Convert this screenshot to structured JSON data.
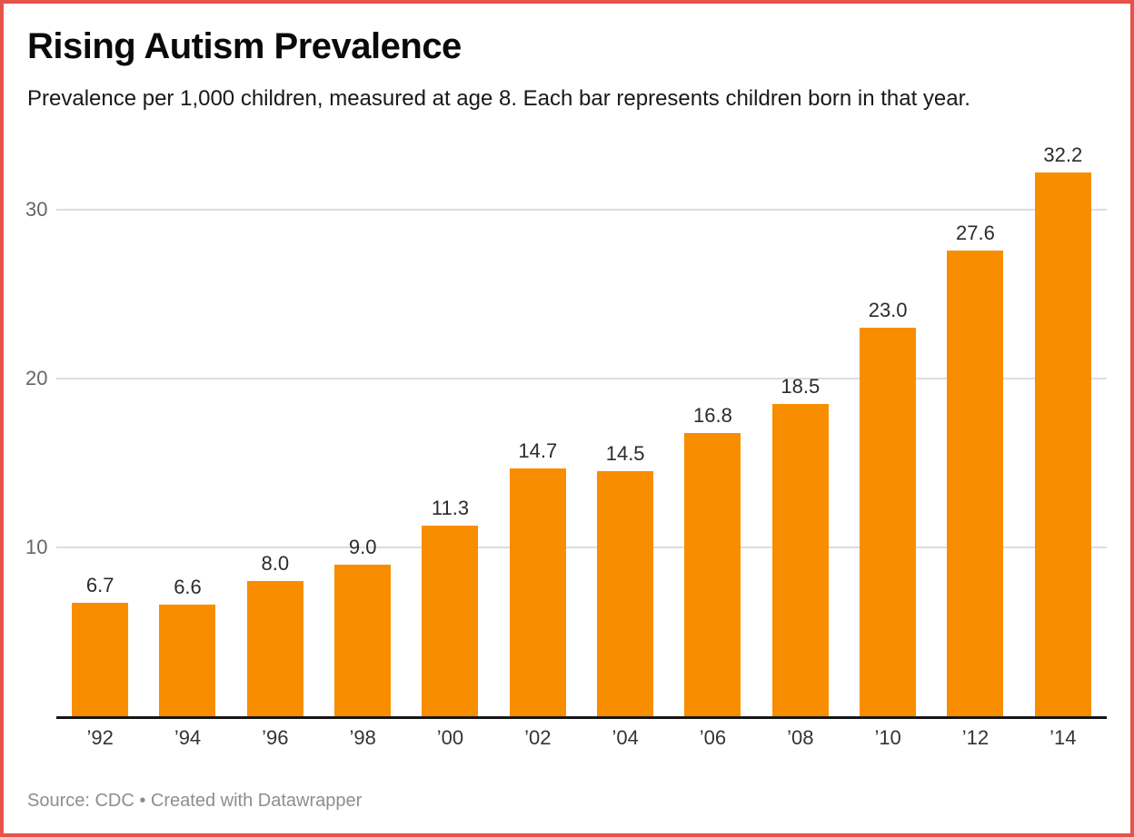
{
  "header": {
    "title": "Rising Autism Prevalence",
    "subtitle": "Prevalence per 1,000 children, measured at age 8. Each bar represents children born in that year."
  },
  "chart_data": {
    "type": "bar",
    "title": "Rising Autism Prevalence",
    "subtitle": "Prevalence per 1,000 children, measured at age 8. Each bar represents children born in that year.",
    "categories": [
      "’92",
      "’94",
      "’96",
      "’98",
      "’00",
      "’02",
      "’04",
      "’06",
      "’08",
      "’10",
      "’12",
      "’14"
    ],
    "values": [
      6.7,
      6.6,
      8.0,
      9.0,
      11.3,
      14.7,
      14.5,
      16.8,
      18.5,
      23.0,
      27.6,
      32.2
    ],
    "value_labels": [
      "6.7",
      "6.6",
      "8.0",
      "9.0",
      "11.3",
      "14.7",
      "14.5",
      "16.8",
      "18.5",
      "23.0",
      "27.6",
      "32.2"
    ],
    "xlabel": "",
    "ylabel": "",
    "ylim": [
      0,
      34.7
    ],
    "yticks": [
      10,
      20,
      30
    ],
    "grid": true,
    "legend": "none"
  },
  "colors": {
    "bar": "#f98d00",
    "frame_border": "#e5534a",
    "gridline": "#dddddd",
    "axis_line": "#151515",
    "y_tick_label": "#666666",
    "value_label": "#2b2b2b",
    "category_label": "#333333",
    "footer_text": "#8e8e8e"
  },
  "footer": {
    "source": "Source: CDC • Created with Datawrapper"
  }
}
